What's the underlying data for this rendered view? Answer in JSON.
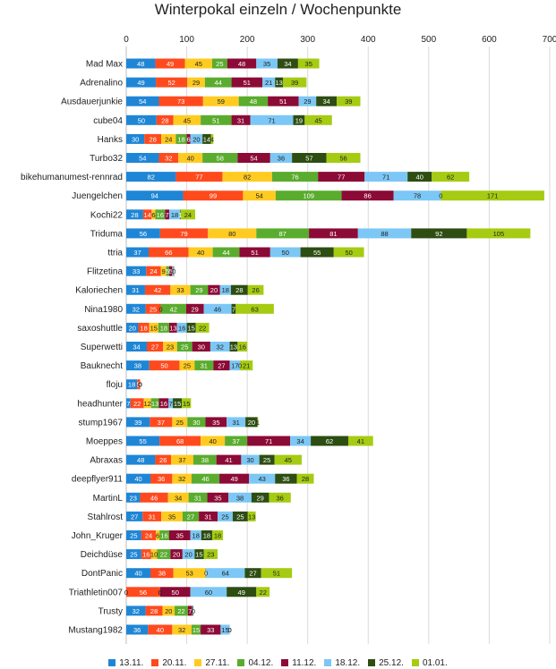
{
  "chart_data": {
    "type": "bar",
    "orientation": "horizontal",
    "stacked": true,
    "title": "Winterpokal einzeln / Wochenpunkte",
    "xlabel": "",
    "ylabel": "",
    "xlim": [
      0,
      700
    ],
    "ticks": [
      0,
      100,
      200,
      300,
      400,
      500,
      600,
      700
    ],
    "grid": true,
    "legend_position": "bottom",
    "categories": [
      "Mad Max",
      "Adrenalino",
      "Ausdauerjunkie",
      "cube04",
      "Hanks",
      "Turbo32",
      "bikehumanumest-rennrad",
      "Juengelchen",
      "Kochi22",
      "Triduma",
      "ttria",
      "Flitzetina",
      "Kaloriechen",
      "Nina1980",
      "saxoshuttle",
      "Superwetti",
      "Bauknecht",
      "floju",
      "headhunter",
      "stump1967",
      "Moeppes",
      "Abraxas",
      "deepflyer911",
      "MartinL",
      "Stahlrost",
      "John_Kruger",
      "Deichdüse",
      "DontPanic",
      "Triathletin007",
      "Trusty",
      "Mustang1982"
    ],
    "series": [
      {
        "name": "13.11.",
        "color": "#1f86d6",
        "values": [
          48,
          49,
          54,
          50,
          30,
          54,
          82,
          94,
          28,
          56,
          37,
          33,
          31,
          32,
          20,
          34,
          38,
          18,
          7,
          39,
          55,
          48,
          40,
          23,
          27,
          25,
          25,
          40,
          0,
          32,
          36
        ]
      },
      {
        "name": "20.11.",
        "color": "#ff4a1e",
        "values": [
          49,
          52,
          73,
          28,
          28,
          32,
          77,
          99,
          14,
          79,
          66,
          24,
          42,
          25,
          18,
          27,
          50,
          5,
          22,
          37,
          68,
          26,
          36,
          46,
          31,
          24,
          16,
          38,
          56,
          28,
          40
        ]
      },
      {
        "name": "27.11.",
        "color": "#ffcb21",
        "values": [
          45,
          29,
          59,
          45,
          24,
          40,
          82,
          54,
          6,
          80,
          40,
          9,
          33,
          0,
          15,
          23,
          25,
          0,
          12,
          25,
          40,
          37,
          32,
          34,
          35,
          6,
          10,
          53,
          0,
          20,
          32
        ]
      },
      {
        "name": "04.12.",
        "color": "#5aac2e",
        "values": [
          25,
          44,
          48,
          51,
          18,
          58,
          76,
          109,
          16,
          87,
          44,
          5,
          29,
          42,
          18,
          25,
          31,
          0,
          13,
          30,
          37,
          38,
          46,
          31,
          27,
          16,
          22,
          1,
          0,
          22,
          15
        ]
      },
      {
        "name": "11.12.",
        "color": "#8c0a36",
        "values": [
          48,
          51,
          51,
          31,
          6,
          54,
          77,
          86,
          7,
          81,
          51,
          5,
          20,
          29,
          13,
          30,
          27,
          0,
          16,
          35,
          71,
          41,
          49,
          35,
          31,
          35,
          20,
          0,
          50,
          7,
          33
        ]
      },
      {
        "name": "18.12.",
        "color": "#7cc7f5",
        "values": [
          35,
          21,
          29,
          71,
          20,
          36,
          71,
          78,
          18,
          88,
          50,
          2,
          18,
          46,
          16,
          32,
          17,
          0,
          7,
          31,
          34,
          30,
          43,
          38,
          25,
          18,
          20,
          64,
          60,
          1,
          15
        ]
      },
      {
        "name": "25.12.",
        "color": "#2d4d12",
        "values": [
          34,
          13,
          34,
          19,
          14,
          57,
          40,
          0,
          1,
          92,
          55,
          1,
          28,
          7,
          15,
          13,
          0,
          0,
          15,
          20,
          62,
          25,
          36,
          29,
          25,
          18,
          15,
          27,
          49,
          1,
          0
        ]
      },
      {
        "name": "01.01.",
        "color": "#a5cb12",
        "values": [
          35,
          39,
          39,
          45,
          4,
          56,
          62,
          171,
          24,
          105,
          50,
          0,
          26,
          63,
          22,
          16,
          21,
          0,
          15,
          1,
          41,
          45,
          28,
          36,
          13,
          18,
          23,
          51,
          22,
          0,
          0
        ]
      }
    ]
  }
}
